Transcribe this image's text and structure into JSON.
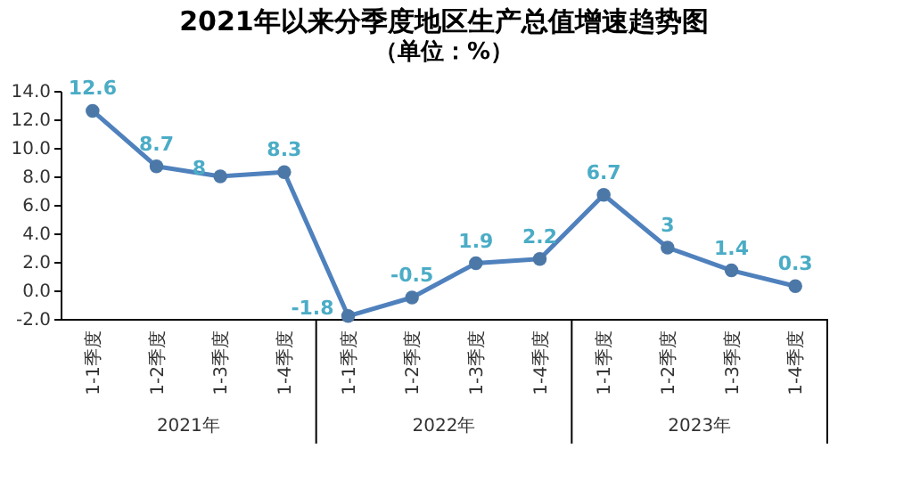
{
  "chart_data": {
    "type": "line",
    "title": "2021年以来分季度地区生产总值增速趋势图",
    "subtitle": "（单位：%）",
    "categories": [
      "1-1季度",
      "1-2季度",
      "1-3季度",
      "1-4季度",
      "1-1季度",
      "1-2季度",
      "1-3季度",
      "1-4季度",
      "1-1季度",
      "1-2季度",
      "1-3季度",
      "1-4季度"
    ],
    "series": [
      {
        "color": "#4f81bd",
        "values": [
          12.6,
          8.7,
          8,
          8.3,
          -1.8,
          -0.5,
          1.9,
          2.2,
          6.7,
          3,
          1.4,
          0.3
        ]
      }
    ],
    "data_labels": true,
    "marker": "circle",
    "grid": false,
    "ylim": [
      -2,
      14
    ],
    "yticks": [
      {
        "value": -2,
        "label": "-2.0"
      },
      {
        "value": 0,
        "label": "0.0"
      },
      {
        "value": 2,
        "label": "2.0"
      },
      {
        "value": 4,
        "label": "4.0"
      },
      {
        "value": 6,
        "label": "6.0"
      },
      {
        "value": 8,
        "label": "8.0"
      },
      {
        "value": 10,
        "label": "10.0"
      },
      {
        "value": 12,
        "label": "12.0"
      },
      {
        "value": 14,
        "label": "14.0"
      }
    ],
    "annotations": [
      "2021年",
      "2022年",
      "2023年"
    ]
  }
}
